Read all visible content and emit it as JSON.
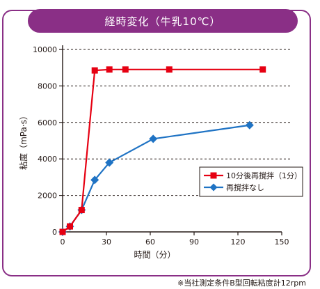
{
  "chart_data": {
    "type": "line",
    "title": "経時変化（牛乳10℃）",
    "xlabel": "時間（分）",
    "ylabel": "粘度（mPa·s）",
    "xlim": [
      0,
      150
    ],
    "ylim": [
      0,
      10000
    ],
    "x_ticks": [
      0,
      30,
      60,
      90,
      120,
      150
    ],
    "y_ticks": [
      0,
      2000,
      4000,
      6000,
      8000,
      10000
    ],
    "grid": "horizontal dashed",
    "legend_position": "right",
    "series": [
      {
        "name": "10分後再撹拌（1分）",
        "color": "#e60012",
        "marker": "square",
        "x": [
          0,
          5,
          13,
          22,
          32,
          43,
          73,
          137
        ],
        "y": [
          0,
          300,
          1200,
          8850,
          8900,
          8900,
          8900,
          8900
        ]
      },
      {
        "name": "再撹拌なし",
        "color": "#1f73c4",
        "marker": "diamond",
        "x": [
          0,
          5,
          13,
          22,
          32,
          62,
          128
        ],
        "y": [
          0,
          300,
          1200,
          2850,
          3800,
          5100,
          5850
        ]
      }
    ]
  },
  "footnote": "※当社測定条件B型回転粘度計12rpm"
}
